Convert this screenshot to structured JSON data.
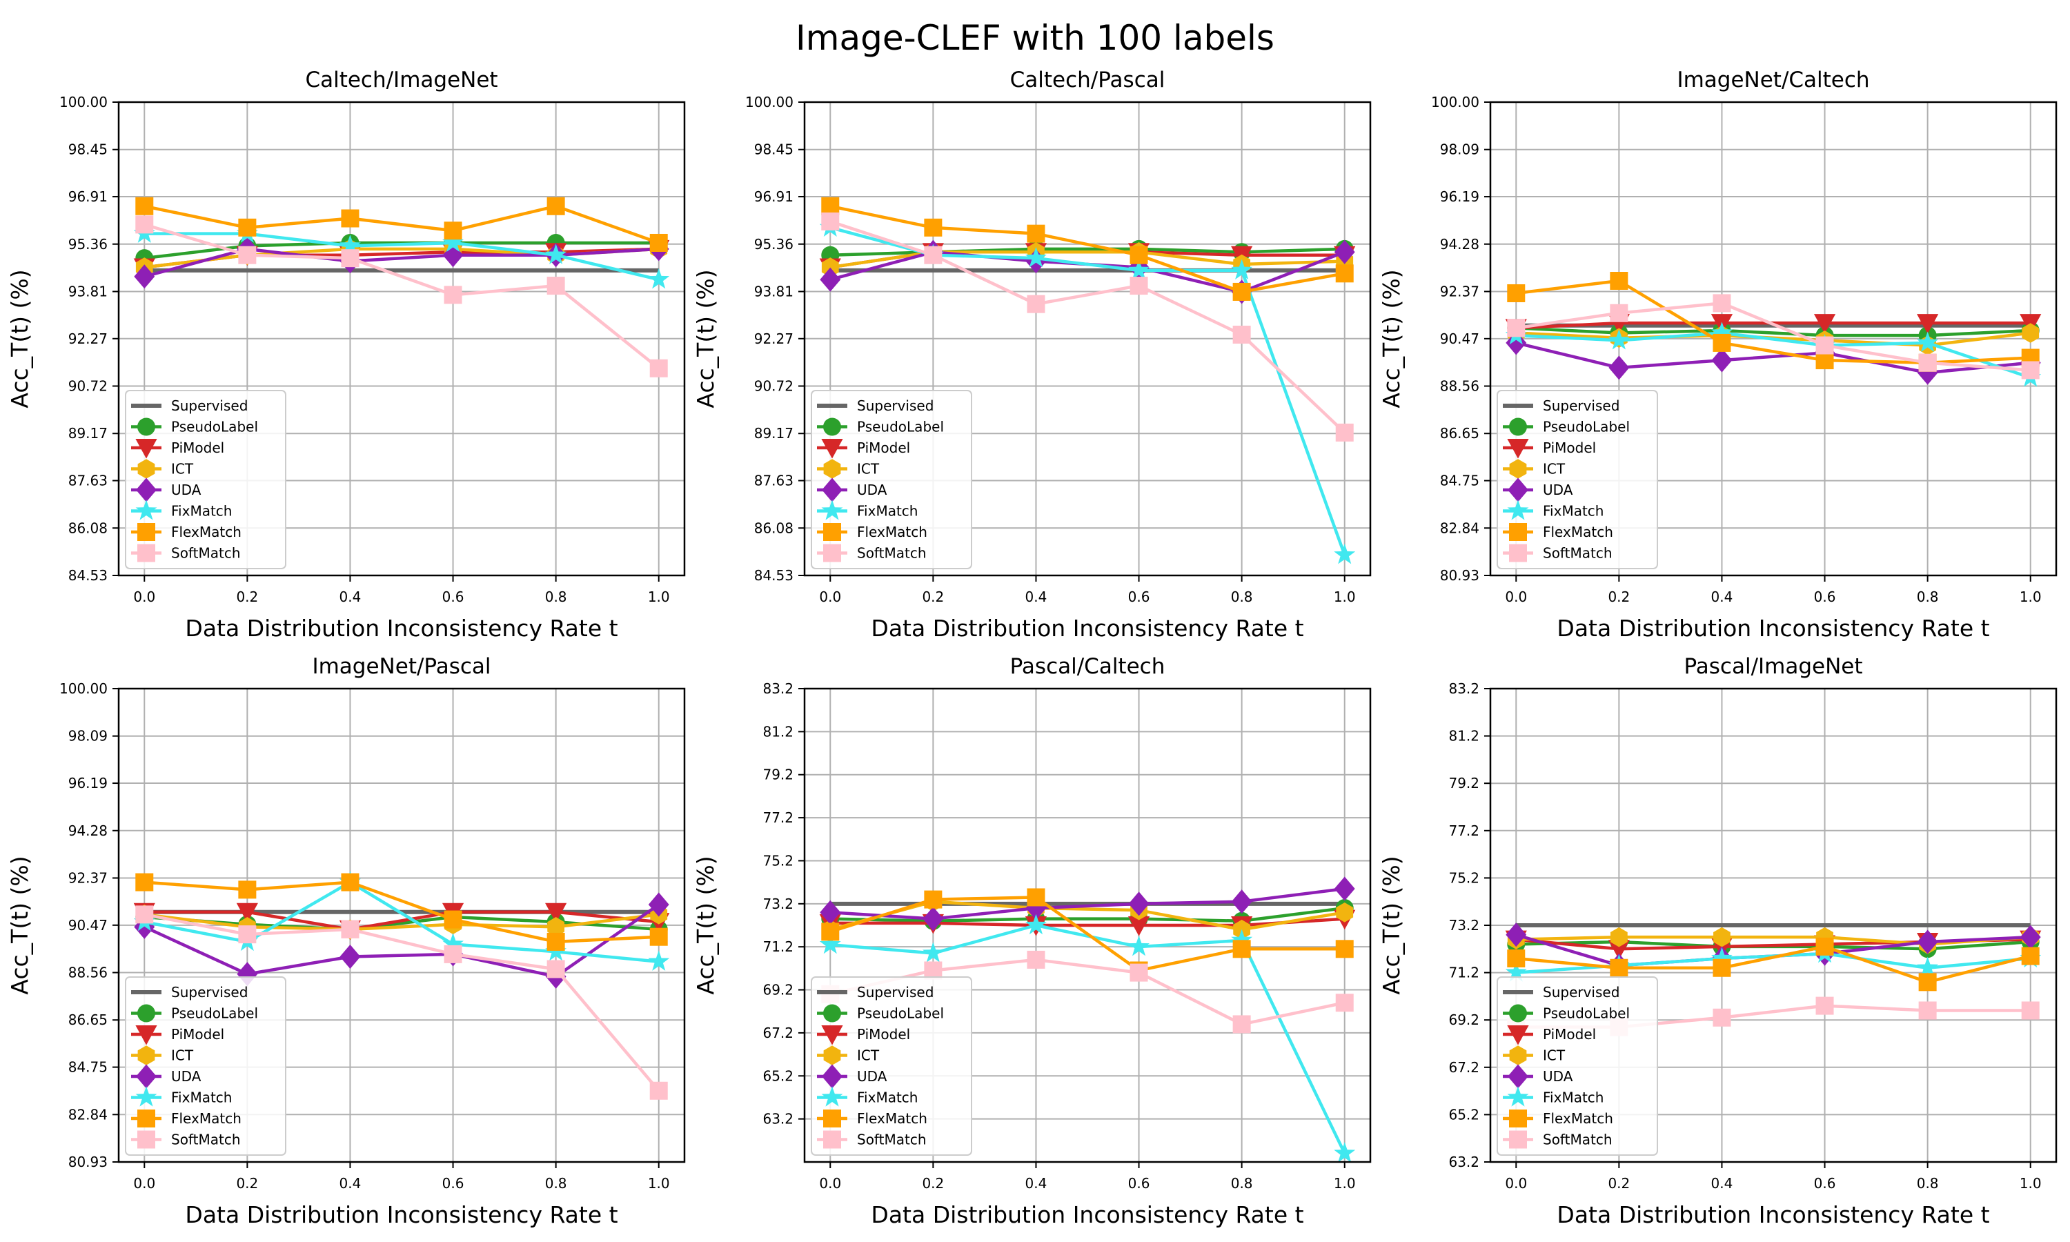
{
  "title": "Image-CLEF with 100 labels",
  "x_ticks": [
    "0.0",
    "0.2",
    "0.4",
    "0.6",
    "0.8",
    "1.0"
  ],
  "xlabel": "Data Distribution Inconsistency Rate t",
  "ylabel": "Acc_T(t) (%)",
  "legend_labels": [
    "Supervised",
    "PseudoLabel",
    "PiModel",
    "ICT",
    "UDA",
    "FixMatch",
    "FlexMatch",
    "SoftMatch"
  ],
  "series_style": [
    {
      "name": "Supervised",
      "color": "#666666",
      "marker": "none"
    },
    {
      "name": "PseudoLabel",
      "color": "#2ca02c",
      "marker": "circle"
    },
    {
      "name": "PiModel",
      "color": "#d62728",
      "marker": "triangle-down"
    },
    {
      "name": "ICT",
      "color": "#f2b40f",
      "marker": "hexagon"
    },
    {
      "name": "UDA",
      "color": "#8e1fb5",
      "marker": "diamond"
    },
    {
      "name": "FixMatch",
      "color": "#40e8ef",
      "marker": "star"
    },
    {
      "name": "FlexMatch",
      "color": "#ffa000",
      "marker": "square"
    },
    {
      "name": "SoftMatch",
      "color": "#ffc0cb",
      "marker": "square"
    }
  ],
  "chart_data": [
    {
      "type": "line",
      "title": "Caltech/ImageNet",
      "x": [
        0.0,
        0.2,
        0.4,
        0.6,
        0.8,
        1.0
      ],
      "xlim": [
        -0.05,
        1.05
      ],
      "ylim": [
        84.53,
        100.0
      ],
      "yticks": [
        "84.53",
        "86.08",
        "87.63",
        "89.17",
        "90.72",
        "92.27",
        "93.81",
        "95.36",
        "96.91",
        "98.45",
        "100.00"
      ],
      "series": [
        {
          "name": "Supervised",
          "values": [
            94.5,
            94.5,
            94.5,
            94.5,
            94.5,
            94.5
          ]
        },
        {
          "name": "PseudoLabel",
          "values": [
            94.9,
            95.3,
            95.4,
            95.4,
            95.4,
            95.4
          ]
        },
        {
          "name": "PiModel",
          "values": [
            94.6,
            95.0,
            95.0,
            95.1,
            95.1,
            95.2
          ]
        },
        {
          "name": "ICT",
          "values": [
            94.6,
            95.0,
            95.2,
            95.2,
            95.0,
            95.2
          ]
        },
        {
          "name": "UDA",
          "values": [
            94.3,
            95.2,
            94.8,
            95.0,
            95.0,
            95.2
          ]
        },
        {
          "name": "FixMatch",
          "values": [
            95.7,
            95.7,
            95.3,
            95.4,
            95.0,
            94.2
          ]
        },
        {
          "name": "FlexMatch",
          "values": [
            96.6,
            95.9,
            96.2,
            95.8,
            96.6,
            95.4
          ]
        },
        {
          "name": "SoftMatch",
          "values": [
            96.0,
            95.0,
            94.9,
            93.7,
            94.0,
            91.3
          ]
        }
      ]
    },
    {
      "type": "line",
      "title": "Caltech/Pascal",
      "x": [
        0.0,
        0.2,
        0.4,
        0.6,
        0.8,
        1.0
      ],
      "xlim": [
        -0.05,
        1.05
      ],
      "ylim": [
        84.53,
        100.0
      ],
      "yticks": [
        "84.53",
        "86.08",
        "87.63",
        "89.17",
        "90.72",
        "92.27",
        "93.81",
        "95.36",
        "96.91",
        "98.45",
        "100.00"
      ],
      "series": [
        {
          "name": "Supervised",
          "values": [
            94.5,
            94.5,
            94.5,
            94.5,
            94.5,
            94.5
          ]
        },
        {
          "name": "PseudoLabel",
          "values": [
            95.0,
            95.1,
            95.2,
            95.2,
            95.1,
            95.2
          ]
        },
        {
          "name": "PiModel",
          "values": [
            94.6,
            95.1,
            95.1,
            95.1,
            95.0,
            95.0
          ]
        },
        {
          "name": "ICT",
          "values": [
            94.6,
            95.1,
            95.1,
            95.1,
            94.7,
            94.8
          ]
        },
        {
          "name": "UDA",
          "values": [
            94.2,
            95.1,
            94.8,
            94.6,
            93.8,
            95.1
          ]
        },
        {
          "name": "FixMatch",
          "values": [
            95.9,
            95.0,
            94.9,
            94.5,
            94.5,
            85.2
          ]
        },
        {
          "name": "FlexMatch",
          "values": [
            96.6,
            95.9,
            95.7,
            95.0,
            93.8,
            94.4
          ]
        },
        {
          "name": "SoftMatch",
          "values": [
            96.1,
            95.0,
            93.4,
            94.0,
            92.4,
            89.2
          ]
        }
      ]
    },
    {
      "type": "line",
      "title": "ImageNet/Caltech",
      "x": [
        0.0,
        0.2,
        0.4,
        0.6,
        0.8,
        1.0
      ],
      "xlim": [
        -0.05,
        1.05
      ],
      "ylim": [
        80.93,
        100.0
      ],
      "yticks": [
        "80.93",
        "82.84",
        "84.75",
        "86.65",
        "88.56",
        "90.47",
        "92.37",
        "94.28",
        "96.19",
        "98.09",
        "100.00"
      ],
      "series": [
        {
          "name": "Supervised",
          "values": [
            91.0,
            91.0,
            91.0,
            91.0,
            91.0,
            91.0
          ]
        },
        {
          "name": "PseudoLabel",
          "values": [
            90.9,
            90.7,
            90.8,
            90.6,
            90.6,
            90.8
          ]
        },
        {
          "name": "PiModel",
          "values": [
            90.9,
            91.1,
            91.1,
            91.1,
            91.1,
            91.1
          ]
        },
        {
          "name": "ICT",
          "values": [
            90.7,
            90.5,
            90.6,
            90.4,
            90.2,
            90.7
          ]
        },
        {
          "name": "UDA",
          "values": [
            90.3,
            89.3,
            89.6,
            89.9,
            89.1,
            89.5
          ]
        },
        {
          "name": "FixMatch",
          "values": [
            90.6,
            90.4,
            90.7,
            90.2,
            90.3,
            88.9
          ]
        },
        {
          "name": "FlexMatch",
          "values": [
            92.3,
            92.8,
            90.3,
            89.6,
            89.5,
            89.7
          ]
        },
        {
          "name": "SoftMatch",
          "values": [
            90.9,
            91.5,
            91.9,
            90.2,
            89.5,
            89.2
          ]
        }
      ]
    },
    {
      "type": "line",
      "title": "ImageNet/Pascal",
      "x": [
        0.0,
        0.2,
        0.4,
        0.6,
        0.8,
        1.0
      ],
      "xlim": [
        -0.05,
        1.05
      ],
      "ylim": [
        80.93,
        100.0
      ],
      "yticks": [
        "80.93",
        "82.84",
        "84.75",
        "86.65",
        "88.56",
        "90.47",
        "92.37",
        "94.28",
        "96.19",
        "98.09",
        "100.00"
      ],
      "series": [
        {
          "name": "Supervised",
          "values": [
            91.0,
            91.0,
            91.0,
            91.0,
            91.0,
            91.0
          ]
        },
        {
          "name": "PseudoLabel",
          "values": [
            90.8,
            90.5,
            90.3,
            90.8,
            90.6,
            90.3
          ]
        },
        {
          "name": "PiModel",
          "values": [
            91.0,
            91.0,
            90.3,
            91.0,
            91.0,
            90.6
          ]
        },
        {
          "name": "ICT",
          "values": [
            90.9,
            90.4,
            90.3,
            90.5,
            90.4,
            90.9
          ]
        },
        {
          "name": "UDA",
          "values": [
            90.4,
            88.5,
            89.2,
            89.3,
            88.4,
            91.3
          ]
        },
        {
          "name": "FixMatch",
          "values": [
            90.6,
            89.8,
            92.2,
            89.7,
            89.4,
            89.0
          ]
        },
        {
          "name": "FlexMatch",
          "values": [
            92.2,
            91.9,
            92.2,
            90.7,
            89.8,
            90.0
          ]
        },
        {
          "name": "SoftMatch",
          "values": [
            90.9,
            90.1,
            90.3,
            89.3,
            88.7,
            83.8
          ]
        }
      ]
    },
    {
      "type": "line",
      "title": "Pascal/Caltech",
      "x": [
        0.0,
        0.2,
        0.4,
        0.6,
        0.8,
        1.0
      ],
      "xlim": [
        -0.05,
        1.05
      ],
      "ylim": [
        61.2,
        83.2
      ],
      "yticks": [
        "63.2",
        "65.2",
        "67.2",
        "69.2",
        "71.2",
        "73.2",
        "75.2",
        "77.2",
        "79.2",
        "81.2",
        "83.2"
      ],
      "series": [
        {
          "name": "Supervised",
          "values": [
            73.2,
            73.2,
            73.2,
            73.2,
            73.2,
            73.2
          ]
        },
        {
          "name": "PseudoLabel",
          "values": [
            72.5,
            72.4,
            72.5,
            72.5,
            72.4,
            73.0
          ]
        },
        {
          "name": "PiModel",
          "values": [
            72.3,
            72.3,
            72.2,
            72.2,
            72.2,
            72.5
          ]
        },
        {
          "name": "ICT",
          "values": [
            72.0,
            73.3,
            73.0,
            72.9,
            72.0,
            72.8
          ]
        },
        {
          "name": "UDA",
          "values": [
            72.8,
            72.5,
            73.0,
            73.2,
            73.3,
            73.9
          ]
        },
        {
          "name": "FixMatch",
          "values": [
            71.3,
            70.9,
            72.2,
            71.2,
            71.5,
            61.6
          ]
        },
        {
          "name": "FlexMatch",
          "values": [
            71.9,
            73.4,
            73.5,
            70.1,
            71.1,
            71.1
          ]
        },
        {
          "name": "SoftMatch",
          "values": [
            69.0,
            70.1,
            70.6,
            70.0,
            67.6,
            68.6
          ]
        }
      ]
    },
    {
      "type": "line",
      "title": "Pascal/ImageNet",
      "x": [
        0.0,
        0.2,
        0.4,
        0.6,
        0.8,
        1.0
      ],
      "xlim": [
        -0.05,
        1.05
      ],
      "ylim": [
        63.2,
        83.2
      ],
      "yticks": [
        "63.2",
        "65.2",
        "67.2",
        "69.2",
        "71.2",
        "73.2",
        "75.2",
        "77.2",
        "79.2",
        "81.2",
        "83.2"
      ],
      "series": [
        {
          "name": "Supervised",
          "values": [
            73.2,
            73.2,
            73.2,
            73.2,
            73.2,
            73.2
          ]
        },
        {
          "name": "PseudoLabel",
          "values": [
            72.4,
            72.5,
            72.3,
            72.3,
            72.2,
            72.5
          ]
        },
        {
          "name": "PiModel",
          "values": [
            72.6,
            72.2,
            72.3,
            72.4,
            72.5,
            72.6
          ]
        },
        {
          "name": "ICT",
          "values": [
            72.6,
            72.7,
            72.7,
            72.7,
            72.4,
            72.7
          ]
        },
        {
          "name": "UDA",
          "values": [
            72.8,
            71.5,
            71.8,
            72.0,
            72.5,
            72.7
          ]
        },
        {
          "name": "FixMatch",
          "values": [
            71.2,
            71.5,
            71.8,
            72.0,
            71.4,
            71.8
          ]
        },
        {
          "name": "FlexMatch",
          "values": [
            71.8,
            71.4,
            71.4,
            72.3,
            70.8,
            71.9
          ]
        },
        {
          "name": "SoftMatch",
          "values": [
            68.9,
            68.9,
            69.3,
            69.8,
            69.6,
            69.6
          ]
        }
      ]
    }
  ]
}
